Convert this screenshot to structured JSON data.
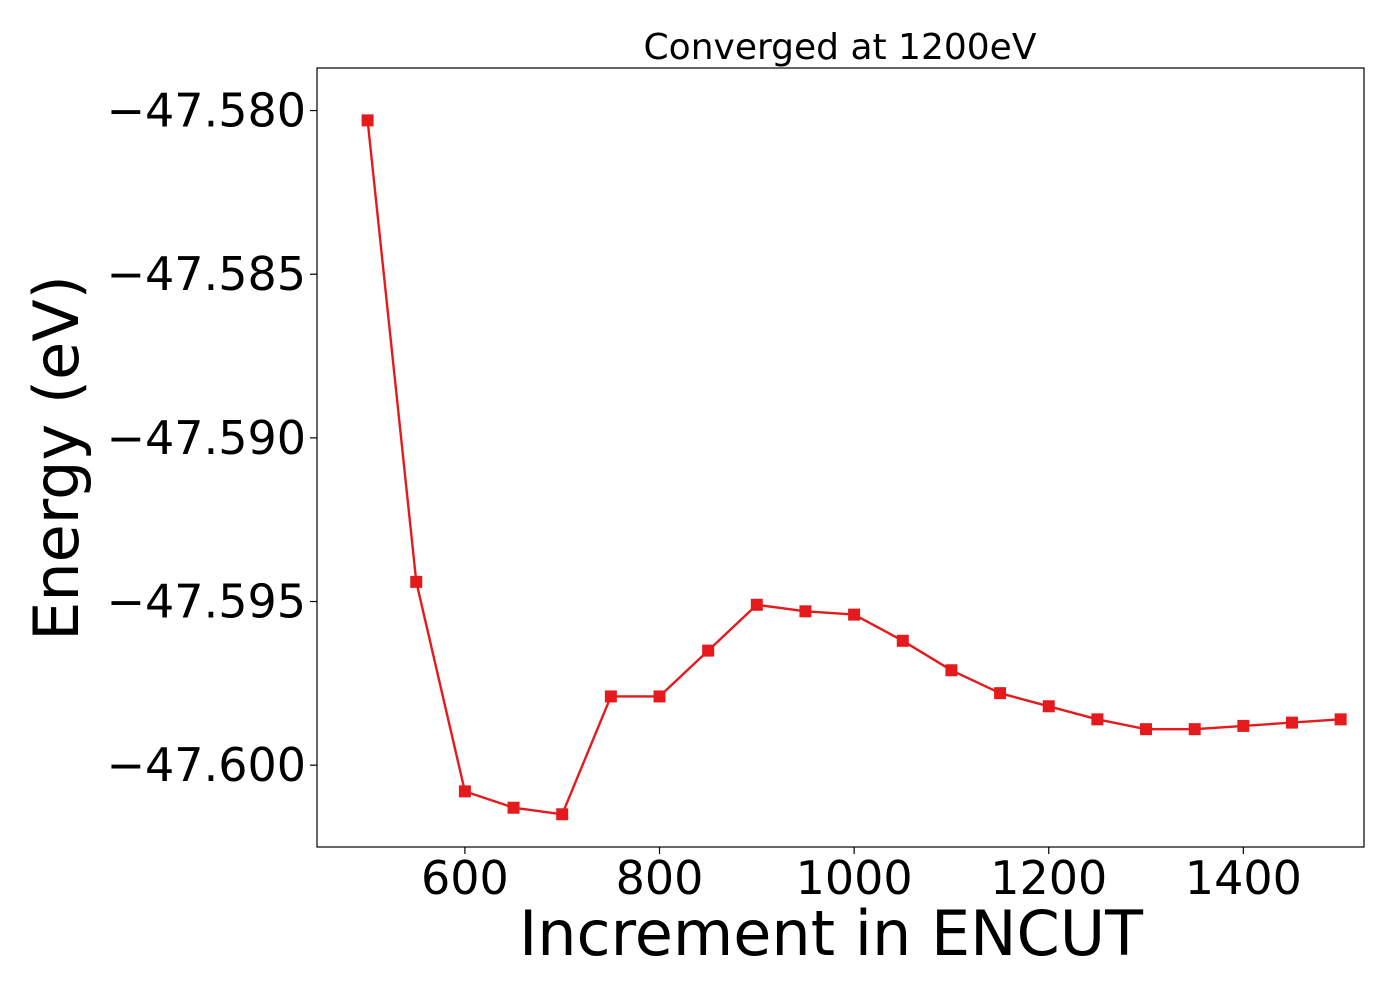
{
  "chart_data": {
    "type": "line",
    "title": "Converged at 1200eV",
    "xlabel": "Increment in ENCUT",
    "ylabel": "Energy (eV)",
    "xlim": [
      448,
      1524
    ],
    "ylim": [
      -47.6025,
      -47.5787
    ],
    "xticks": [
      600,
      800,
      1000,
      1200,
      1400
    ],
    "xtick_labels": [
      "600",
      "800",
      "1000",
      "1200",
      "1400"
    ],
    "yticks": [
      -47.58,
      -47.585,
      -47.59,
      -47.595,
      -47.6
    ],
    "ytick_labels": [
      "−47.580",
      "−47.585",
      "−47.590",
      "−47.595",
      "−47.600"
    ],
    "grid": false,
    "series": [
      {
        "color": "#e41a1c",
        "marker": "square",
        "x": [
          500,
          550,
          600,
          650,
          700,
          750,
          800,
          850,
          900,
          950,
          1000,
          1050,
          1100,
          1150,
          1200,
          1250,
          1300,
          1350,
          1400,
          1450,
          1500
        ],
        "y": [
          -47.5803,
          -47.5944,
          -47.6008,
          -47.6013,
          -47.6015,
          -47.5979,
          -47.5979,
          -47.5965,
          -47.5951,
          -47.5953,
          -47.5954,
          -47.5962,
          -47.5971,
          -47.5978,
          -47.5982,
          -47.5986,
          -47.5989,
          -47.5989,
          -47.5988,
          -47.5987,
          -47.5986
        ]
      }
    ]
  }
}
